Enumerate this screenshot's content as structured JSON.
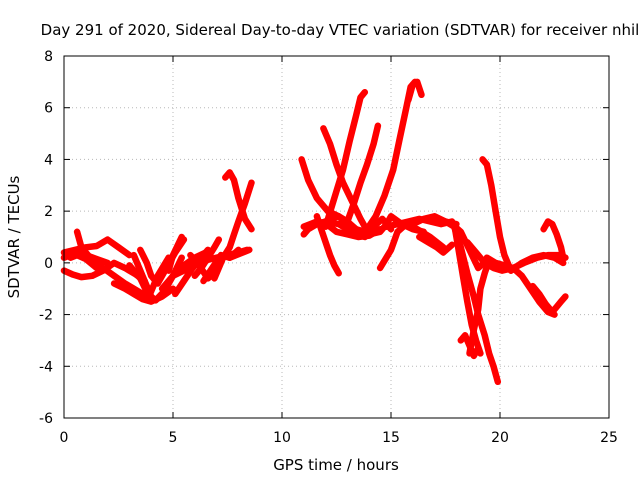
{
  "chart_data": {
    "type": "line",
    "title": "Day 291 of 2020, Sidereal Day-to-day VTEC variation (SDTVAR) for receiver nhil",
    "xlabel": "GPS time / hours",
    "ylabel": "SDTVAR / TECUs",
    "xlim": [
      0,
      25
    ],
    "ylim": [
      -6,
      8
    ],
    "xticks": [
      "0",
      "5",
      "10",
      "15",
      "20",
      "25"
    ],
    "yticks": [
      "-6",
      "-4",
      "-2",
      "0",
      "2",
      "4",
      "6",
      "8"
    ],
    "grid": true,
    "marker_color": "#ff0000",
    "series": [
      {
        "x": [
          0.0,
          0.3,
          0.6,
          1.0,
          1.5,
          2.0
        ],
        "y": [
          0.2,
          0.3,
          0.4,
          0.3,
          0.15,
          0.0
        ]
      },
      {
        "x": [
          0.6,
          0.8,
          1.2,
          1.8,
          2.3,
          2.8,
          3.2,
          3.6,
          4.0
        ],
        "y": [
          1.2,
          0.6,
          0.2,
          -0.2,
          -0.5,
          -0.8,
          -1.0,
          -1.2,
          -1.4
        ]
      },
      {
        "x": [
          0.0,
          0.4,
          0.8,
          1.3,
          1.8,
          2.3,
          2.8,
          3.3,
          3.7
        ],
        "y": [
          -0.3,
          -0.45,
          -0.55,
          -0.5,
          -0.3,
          0.0,
          -0.2,
          -0.45,
          -0.7
        ]
      },
      {
        "x": [
          0.0,
          0.5,
          1.0,
          1.5,
          2.0,
          2.5,
          3.0
        ],
        "y": [
          0.4,
          0.5,
          0.6,
          0.65,
          0.9,
          0.6,
          0.3
        ]
      },
      {
        "x": [
          0.3,
          0.6,
          1.0,
          1.5
        ],
        "y": [
          0.2,
          0.3,
          0.15,
          -0.2
        ]
      },
      {
        "x": [
          2.3,
          2.8,
          3.2,
          3.6,
          4.0,
          4.5,
          5.0
        ],
        "y": [
          -0.8,
          -1.0,
          -1.2,
          -1.4,
          -1.5,
          -1.3,
          -1.0
        ]
      },
      {
        "x": [
          3.0,
          3.5,
          3.9,
          4.3,
          4.8
        ],
        "y": [
          -0.1,
          -0.6,
          -1.3,
          -0.5,
          0.2
        ]
      },
      {
        "x": [
          3.2,
          3.5,
          3.8,
          4.0,
          4.2,
          4.6,
          5.0,
          5.4
        ],
        "y": [
          0.3,
          -0.3,
          -0.9,
          -1.3,
          -1.45,
          -1.1,
          -0.5,
          0.2
        ]
      },
      {
        "x": [
          3.5,
          3.8,
          4.0,
          4.3,
          4.7,
          5.1,
          5.5
        ],
        "y": [
          0.5,
          0.0,
          -0.5,
          -0.8,
          -0.2,
          0.4,
          0.9
        ]
      },
      {
        "x": [
          4.8,
          5.0,
          5.4
        ],
        "y": [
          -0.3,
          0.3,
          1.0
        ]
      },
      {
        "x": [
          4.5,
          5.0,
          5.5,
          6.0,
          6.5
        ],
        "y": [
          -1.0,
          -0.5,
          -0.1,
          0.2,
          0.4
        ]
      },
      {
        "x": [
          5.0,
          5.5,
          6.0,
          6.5,
          7.0,
          7.5,
          8.0,
          8.4
        ],
        "y": [
          -0.5,
          -0.3,
          -0.1,
          0.1,
          0.2,
          0.3,
          0.4,
          0.5
        ]
      },
      {
        "x": [
          5.1,
          5.5,
          5.9,
          6.3,
          6.6
        ],
        "y": [
          -1.2,
          -0.7,
          -0.2,
          0.2,
          0.5
        ]
      },
      {
        "x": [
          5.8,
          6.2,
          6.6,
          7.0
        ],
        "y": [
          0.3,
          -0.1,
          -0.6,
          -0.3
        ]
      },
      {
        "x": [
          6.0,
          6.3,
          6.6,
          6.9,
          7.1
        ],
        "y": [
          -0.5,
          -0.2,
          0.2,
          0.6,
          0.9
        ]
      },
      {
        "x": [
          6.4,
          6.8,
          7.2,
          7.6,
          8.0
        ],
        "y": [
          -0.7,
          -0.2,
          0.3,
          0.2,
          0.5
        ]
      },
      {
        "x": [
          6.9,
          7.3,
          7.6,
          7.8,
          8.0,
          8.3,
          8.6
        ],
        "y": [
          -0.6,
          0.2,
          0.6,
          1.1,
          1.6,
          2.3,
          3.1
        ]
      },
      {
        "x": [
          7.4,
          7.6,
          7.8,
          8.0,
          8.3,
          8.6
        ],
        "y": [
          3.3,
          3.5,
          3.2,
          2.5,
          1.7,
          1.3
        ]
      },
      {
        "x": [
          7.6,
          7.9,
          8.2,
          8.5
        ],
        "y": [
          0.2,
          0.3,
          0.4,
          0.5
        ]
      },
      {
        "x": [
          10.9,
          11.2,
          11.6,
          12.1,
          12.6,
          13.0,
          13.4,
          13.8
        ],
        "y": [
          4.0,
          3.2,
          2.5,
          2.0,
          1.8,
          1.5,
          1.3,
          1.1
        ]
      },
      {
        "x": [
          11.0,
          11.3,
          11.6,
          11.9,
          12.2,
          12.5,
          13.0,
          13.5,
          14.0,
          14.5
        ],
        "y": [
          1.4,
          1.5,
          1.6,
          1.55,
          1.4,
          1.2,
          1.1,
          1.0,
          1.05,
          1.3
        ]
      },
      {
        "x": [
          11.0,
          11.2,
          11.6,
          12.0,
          12.6,
          13.2,
          13.8
        ],
        "y": [
          1.1,
          1.3,
          1.5,
          1.6,
          1.5,
          1.2,
          1.0
        ]
      },
      {
        "x": [
          11.6,
          11.8,
          12.0,
          12.2,
          12.4,
          12.6
        ],
        "y": [
          1.8,
          1.3,
          0.8,
          0.3,
          -0.1,
          -0.4
        ]
      },
      {
        "x": [
          11.9,
          12.2,
          12.5,
          12.8,
          13.2,
          13.6,
          14.0
        ],
        "y": [
          5.2,
          4.6,
          3.8,
          3.1,
          2.4,
          1.7,
          1.1
        ]
      },
      {
        "x": [
          11.8,
          12.2,
          12.6,
          13.0,
          13.4,
          13.8,
          14.2,
          14.6,
          15.0
        ],
        "y": [
          1.5,
          1.7,
          1.8,
          1.6,
          1.3,
          1.2,
          1.4,
          1.7,
          1.3
        ]
      },
      {
        "x": [
          12.0,
          12.4,
          12.8,
          13.1,
          13.4,
          13.6,
          13.8
        ],
        "y": [
          1.4,
          2.5,
          3.6,
          4.7,
          5.7,
          6.4,
          6.6
        ]
      },
      {
        "x": [
          13.0,
          13.3,
          13.6,
          13.9,
          14.2,
          14.4
        ],
        "y": [
          1.6,
          2.3,
          3.1,
          3.8,
          4.6,
          5.3
        ]
      },
      {
        "x": [
          13.5,
          14.0,
          14.5,
          14.8,
          15.0,
          15.5,
          16.0,
          16.5
        ],
        "y": [
          1.2,
          1.1,
          1.2,
          1.5,
          1.8,
          1.5,
          1.3,
          1.2
        ]
      },
      {
        "x": [
          13.5,
          13.9,
          14.3,
          14.7,
          15.1,
          15.4,
          15.7,
          15.9,
          16.1
        ],
        "y": [
          1.1,
          1.3,
          1.8,
          2.6,
          3.6,
          4.8,
          6.0,
          6.8,
          7.0
        ]
      },
      {
        "x": [
          15.8,
          16.0,
          16.2,
          16.4
        ],
        "y": [
          6.3,
          6.9,
          7.0,
          6.5
        ]
      },
      {
        "x": [
          14.5,
          15.0,
          15.3,
          15.7,
          16.2,
          16.8,
          17.4
        ],
        "y": [
          -0.2,
          0.5,
          1.2,
          1.5,
          1.3,
          1.0,
          0.6
        ]
      },
      {
        "x": [
          14.8,
          15.3,
          15.8,
          16.3,
          16.8,
          17.3,
          17.8
        ],
        "y": [
          1.4,
          1.5,
          1.6,
          1.7,
          1.6,
          1.5,
          1.6
        ]
      },
      {
        "x": [
          16.0,
          16.5,
          17.0,
          17.5,
          18.0
        ],
        "y": [
          1.5,
          1.7,
          1.8,
          1.6,
          1.5
        ]
      },
      {
        "x": [
          16.3,
          16.7,
          17.1,
          17.4,
          17.8
        ],
        "y": [
          1.0,
          0.8,
          0.6,
          0.4,
          0.7
        ]
      },
      {
        "x": [
          17.5,
          17.9,
          18.2,
          18.5,
          18.8,
          19.0,
          19.3,
          19.5,
          19.7,
          19.9
        ],
        "y": [
          1.6,
          1.4,
          0.6,
          -0.4,
          -1.3,
          -2.0,
          -2.8,
          -3.5,
          -4.0,
          -4.6
        ]
      },
      {
        "x": [
          17.8,
          18.2,
          18.6,
          19.0,
          19.4
        ],
        "y": [
          1.5,
          1.2,
          0.5,
          -0.2,
          0.1
        ]
      },
      {
        "x": [
          17.9,
          18.1,
          18.3,
          18.5,
          18.7,
          18.9,
          19.1
        ],
        "y": [
          1.5,
          0.5,
          -0.5,
          -1.5,
          -2.4,
          -3.0,
          -3.5
        ]
      },
      {
        "x": [
          18.2,
          18.4,
          18.6,
          18.8,
          19.0
        ],
        "y": [
          -3.0,
          -2.8,
          -3.2,
          -3.6,
          -3.3
        ]
      },
      {
        "x": [
          18.6,
          18.8,
          19.0,
          19.1,
          19.3,
          19.5
        ],
        "y": [
          -3.5,
          -2.6,
          -1.8,
          -1.0,
          -0.4,
          0.1
        ]
      },
      {
        "x": [
          19.2,
          19.4,
          19.6,
          19.8,
          20.0,
          20.2,
          20.5
        ],
        "y": [
          4.0,
          3.8,
          3.0,
          2.0,
          1.0,
          0.3,
          -0.3
        ]
      },
      {
        "x": [
          18.5,
          18.9,
          19.3,
          19.7,
          20.1,
          20.6,
          21.1,
          21.7,
          22.2,
          22.7,
          23.0
        ],
        "y": [
          0.8,
          0.4,
          0.0,
          -0.2,
          -0.3,
          -0.2,
          0.0,
          0.2,
          0.3,
          0.3,
          0.2
        ]
      },
      {
        "x": [
          19.4,
          19.8,
          20.2,
          20.6,
          21.0,
          21.4,
          21.8,
          22.2,
          22.5
        ],
        "y": [
          0.2,
          0.0,
          -0.1,
          -0.2,
          -0.5,
          -1.0,
          -1.5,
          -1.9,
          -2.0
        ]
      },
      {
        "x": [
          20.5,
          21.0,
          21.5,
          22.0,
          22.5,
          22.9
        ],
        "y": [
          -0.3,
          0.0,
          0.2,
          0.3,
          0.2,
          0.0
        ]
      },
      {
        "x": [
          21.5,
          21.8,
          22.1,
          22.4,
          22.6,
          22.8,
          23.0
        ],
        "y": [
          -0.9,
          -1.2,
          -1.6,
          -1.9,
          -1.7,
          -1.5,
          -1.3
        ]
      },
      {
        "x": [
          22.0,
          22.2,
          22.4,
          22.6,
          22.8,
          22.9
        ],
        "y": [
          1.3,
          1.6,
          1.5,
          1.1,
          0.6,
          0.2
        ]
      }
    ]
  }
}
